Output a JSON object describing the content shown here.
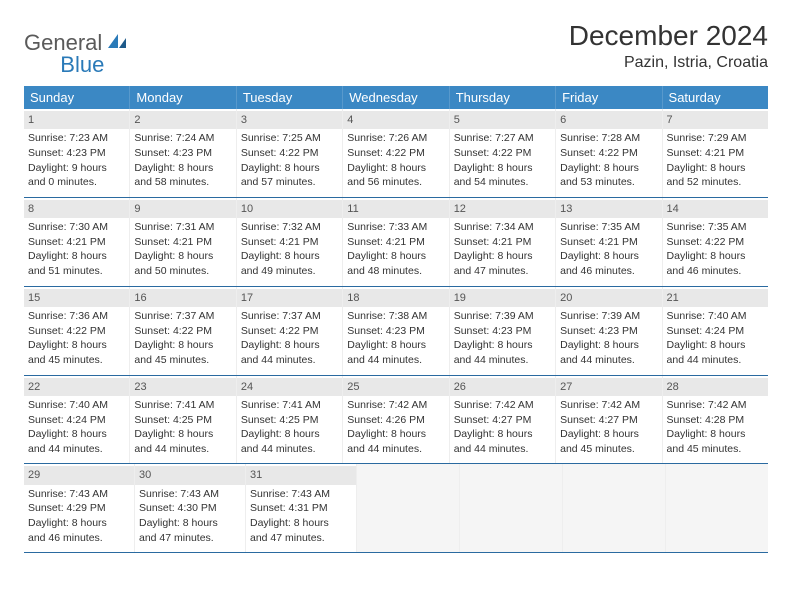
{
  "logo": {
    "part1": "General",
    "part2": "Blue"
  },
  "title": "December 2024",
  "location": "Pazin, Istria, Croatia",
  "colors": {
    "header_bg": "#3b88c4",
    "daynum_bg": "#e8e8e8",
    "border": "#2a6aa0",
    "logo_gray": "#5a5a5a",
    "logo_blue": "#2a7ab8"
  },
  "weekdays": [
    "Sunday",
    "Monday",
    "Tuesday",
    "Wednesday",
    "Thursday",
    "Friday",
    "Saturday"
  ],
  "weeks": [
    [
      {
        "d": "1",
        "sr": "Sunrise: 7:23 AM",
        "ss": "Sunset: 4:23 PM",
        "dl1": "Daylight: 9 hours",
        "dl2": "and 0 minutes."
      },
      {
        "d": "2",
        "sr": "Sunrise: 7:24 AM",
        "ss": "Sunset: 4:23 PM",
        "dl1": "Daylight: 8 hours",
        "dl2": "and 58 minutes."
      },
      {
        "d": "3",
        "sr": "Sunrise: 7:25 AM",
        "ss": "Sunset: 4:22 PM",
        "dl1": "Daylight: 8 hours",
        "dl2": "and 57 minutes."
      },
      {
        "d": "4",
        "sr": "Sunrise: 7:26 AM",
        "ss": "Sunset: 4:22 PM",
        "dl1": "Daylight: 8 hours",
        "dl2": "and 56 minutes."
      },
      {
        "d": "5",
        "sr": "Sunrise: 7:27 AM",
        "ss": "Sunset: 4:22 PM",
        "dl1": "Daylight: 8 hours",
        "dl2": "and 54 minutes."
      },
      {
        "d": "6",
        "sr": "Sunrise: 7:28 AM",
        "ss": "Sunset: 4:22 PM",
        "dl1": "Daylight: 8 hours",
        "dl2": "and 53 minutes."
      },
      {
        "d": "7",
        "sr": "Sunrise: 7:29 AM",
        "ss": "Sunset: 4:21 PM",
        "dl1": "Daylight: 8 hours",
        "dl2": "and 52 minutes."
      }
    ],
    [
      {
        "d": "8",
        "sr": "Sunrise: 7:30 AM",
        "ss": "Sunset: 4:21 PM",
        "dl1": "Daylight: 8 hours",
        "dl2": "and 51 minutes."
      },
      {
        "d": "9",
        "sr": "Sunrise: 7:31 AM",
        "ss": "Sunset: 4:21 PM",
        "dl1": "Daylight: 8 hours",
        "dl2": "and 50 minutes."
      },
      {
        "d": "10",
        "sr": "Sunrise: 7:32 AM",
        "ss": "Sunset: 4:21 PM",
        "dl1": "Daylight: 8 hours",
        "dl2": "and 49 minutes."
      },
      {
        "d": "11",
        "sr": "Sunrise: 7:33 AM",
        "ss": "Sunset: 4:21 PM",
        "dl1": "Daylight: 8 hours",
        "dl2": "and 48 minutes."
      },
      {
        "d": "12",
        "sr": "Sunrise: 7:34 AM",
        "ss": "Sunset: 4:21 PM",
        "dl1": "Daylight: 8 hours",
        "dl2": "and 47 minutes."
      },
      {
        "d": "13",
        "sr": "Sunrise: 7:35 AM",
        "ss": "Sunset: 4:21 PM",
        "dl1": "Daylight: 8 hours",
        "dl2": "and 46 minutes."
      },
      {
        "d": "14",
        "sr": "Sunrise: 7:35 AM",
        "ss": "Sunset: 4:22 PM",
        "dl1": "Daylight: 8 hours",
        "dl2": "and 46 minutes."
      }
    ],
    [
      {
        "d": "15",
        "sr": "Sunrise: 7:36 AM",
        "ss": "Sunset: 4:22 PM",
        "dl1": "Daylight: 8 hours",
        "dl2": "and 45 minutes."
      },
      {
        "d": "16",
        "sr": "Sunrise: 7:37 AM",
        "ss": "Sunset: 4:22 PM",
        "dl1": "Daylight: 8 hours",
        "dl2": "and 45 minutes."
      },
      {
        "d": "17",
        "sr": "Sunrise: 7:37 AM",
        "ss": "Sunset: 4:22 PM",
        "dl1": "Daylight: 8 hours",
        "dl2": "and 44 minutes."
      },
      {
        "d": "18",
        "sr": "Sunrise: 7:38 AM",
        "ss": "Sunset: 4:23 PM",
        "dl1": "Daylight: 8 hours",
        "dl2": "and 44 minutes."
      },
      {
        "d": "19",
        "sr": "Sunrise: 7:39 AM",
        "ss": "Sunset: 4:23 PM",
        "dl1": "Daylight: 8 hours",
        "dl2": "and 44 minutes."
      },
      {
        "d": "20",
        "sr": "Sunrise: 7:39 AM",
        "ss": "Sunset: 4:23 PM",
        "dl1": "Daylight: 8 hours",
        "dl2": "and 44 minutes."
      },
      {
        "d": "21",
        "sr": "Sunrise: 7:40 AM",
        "ss": "Sunset: 4:24 PM",
        "dl1": "Daylight: 8 hours",
        "dl2": "and 44 minutes."
      }
    ],
    [
      {
        "d": "22",
        "sr": "Sunrise: 7:40 AM",
        "ss": "Sunset: 4:24 PM",
        "dl1": "Daylight: 8 hours",
        "dl2": "and 44 minutes."
      },
      {
        "d": "23",
        "sr": "Sunrise: 7:41 AM",
        "ss": "Sunset: 4:25 PM",
        "dl1": "Daylight: 8 hours",
        "dl2": "and 44 minutes."
      },
      {
        "d": "24",
        "sr": "Sunrise: 7:41 AM",
        "ss": "Sunset: 4:25 PM",
        "dl1": "Daylight: 8 hours",
        "dl2": "and 44 minutes."
      },
      {
        "d": "25",
        "sr": "Sunrise: 7:42 AM",
        "ss": "Sunset: 4:26 PM",
        "dl1": "Daylight: 8 hours",
        "dl2": "and 44 minutes."
      },
      {
        "d": "26",
        "sr": "Sunrise: 7:42 AM",
        "ss": "Sunset: 4:27 PM",
        "dl1": "Daylight: 8 hours",
        "dl2": "and 44 minutes."
      },
      {
        "d": "27",
        "sr": "Sunrise: 7:42 AM",
        "ss": "Sunset: 4:27 PM",
        "dl1": "Daylight: 8 hours",
        "dl2": "and 45 minutes."
      },
      {
        "d": "28",
        "sr": "Sunrise: 7:42 AM",
        "ss": "Sunset: 4:28 PM",
        "dl1": "Daylight: 8 hours",
        "dl2": "and 45 minutes."
      }
    ],
    [
      {
        "d": "29",
        "sr": "Sunrise: 7:43 AM",
        "ss": "Sunset: 4:29 PM",
        "dl1": "Daylight: 8 hours",
        "dl2": "and 46 minutes."
      },
      {
        "d": "30",
        "sr": "Sunrise: 7:43 AM",
        "ss": "Sunset: 4:30 PM",
        "dl1": "Daylight: 8 hours",
        "dl2": "and 47 minutes."
      },
      {
        "d": "31",
        "sr": "Sunrise: 7:43 AM",
        "ss": "Sunset: 4:31 PM",
        "dl1": "Daylight: 8 hours",
        "dl2": "and 47 minutes."
      },
      null,
      null,
      null,
      null
    ]
  ]
}
